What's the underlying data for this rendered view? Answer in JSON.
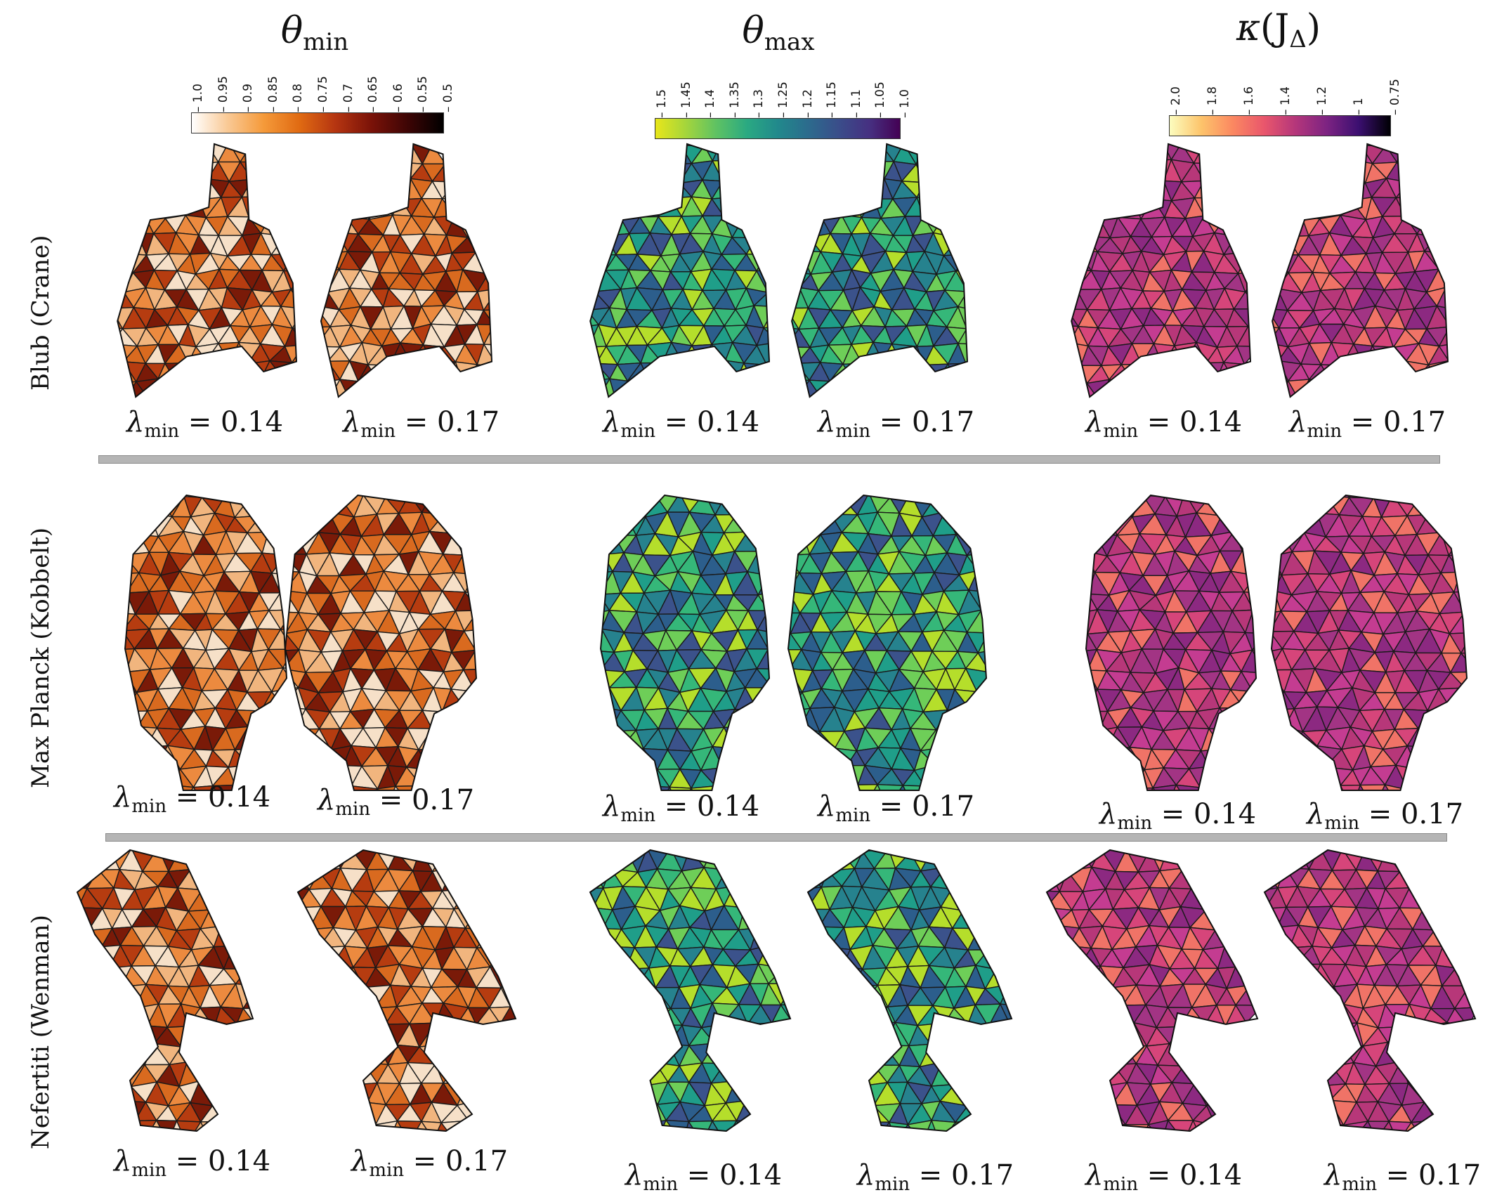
{
  "columns": [
    {
      "symbol": "θ",
      "sub": "min",
      "post": ""
    },
    {
      "symbol": "θ",
      "sub": "max",
      "post": ""
    },
    {
      "symbol": "κ",
      "sub": "",
      "post": "(J",
      "post_sub": "Δ",
      "post_end": ")"
    }
  ],
  "colorbars": [
    {
      "ticks": [
        "1.0",
        "0.95",
        "0.9",
        "0.85",
        "0.8",
        "0.75",
        "0.7",
        "0.65",
        "0.6",
        "0.55",
        "0.5"
      ],
      "colors": [
        "#ffffff",
        "#f9c995",
        "#f59a3a",
        "#e06a12",
        "#b53511",
        "#7a1208",
        "#3e0505",
        "#000000"
      ]
    },
    {
      "ticks": [
        "1.5",
        "1.45",
        "1.4",
        "1.35",
        "1.3",
        "1.25",
        "1.2",
        "1.15",
        "1.1",
        "1.05",
        "1.0"
      ],
      "colors": [
        "#e8e61a",
        "#a4d53c",
        "#5ec263",
        "#2aa982",
        "#21898c",
        "#2c6b8d",
        "#3a4d8a",
        "#463081",
        "#440154"
      ]
    },
    {
      "ticks": [
        "2.0",
        "1.8",
        "1.6",
        "1.4",
        "1.2",
        "1",
        "0.75"
      ],
      "colors": [
        "#fcfdbf",
        "#fdc46b",
        "#fb8861",
        "#e9566c",
        "#b4367b",
        "#7c2382",
        "#3b0f70",
        "#000004"
      ]
    }
  ],
  "rows": [
    {
      "label": "Blub (Crane)"
    },
    {
      "label": "Max Planck (Kobbelt)"
    },
    {
      "label": "Nefertiti (Wenman)"
    }
  ],
  "caption": {
    "lambda": "λ",
    "sub": "min",
    "eq": " = "
  },
  "values": [
    "0.14",
    "0.17"
  ],
  "palettes": {
    "inferno_light": [
      "#f6e0c8",
      "#f1b57e",
      "#ec8a3f",
      "#d96a1f",
      "#b63c10",
      "#7a1a08"
    ],
    "viridis": [
      "#2c5e8c",
      "#26828e",
      "#1f9e89",
      "#35b779",
      "#6ece58",
      "#b5de2b",
      "#3b528b"
    ],
    "magma": [
      "#b73779",
      "#a23484",
      "#c43c91",
      "#8c2981",
      "#d6457a",
      "#f07367"
    ]
  }
}
